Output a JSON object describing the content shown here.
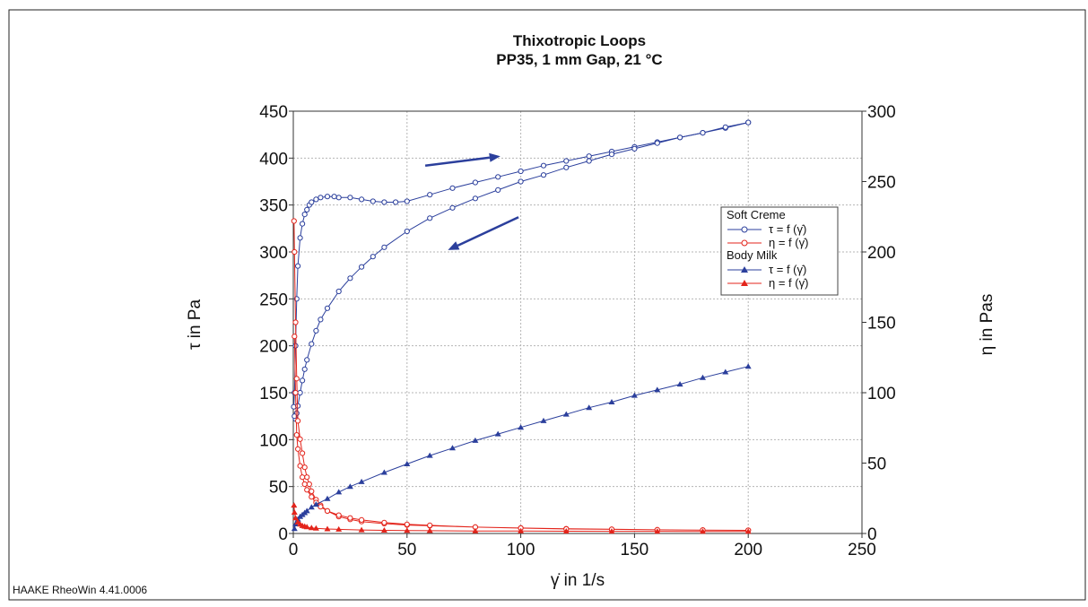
{
  "software_label": "HAAKE RheoWin 4.41.0006",
  "colors": {
    "blue": "#2b3f9c",
    "red": "#e3241b",
    "grid": "#b5b5b5",
    "frame": "#222222"
  },
  "chart_data": {
    "type": "scatter",
    "title": "Thixotropic Loops",
    "subtitle": "PP35, 1 mm Gap, 21 °C",
    "xlabel": "γ̇ in 1/s",
    "ylabel_left": "τ in Pa",
    "ylabel_right": "η in Pas",
    "xlim": [
      0,
      250
    ],
    "ylim_left": [
      0,
      450
    ],
    "ylim_right": [
      0,
      300
    ],
    "xticks": [
      "0",
      "50",
      "100",
      "150",
      "200",
      "250"
    ],
    "yticks_left": [
      "0",
      "50",
      "100",
      "150",
      "200",
      "250",
      "300",
      "350",
      "400",
      "450"
    ],
    "yticks_right": [
      "0",
      "50",
      "100",
      "150",
      "200",
      "250",
      "300"
    ],
    "grid": true,
    "legend_position": "right",
    "legend": [
      {
        "group": "Soft Creme",
        "entries": [
          "τ = f (γ̇)",
          "η = f (γ̇)"
        ]
      },
      {
        "group": "Body Milk",
        "entries": [
          "τ = f (γ̇)",
          "η = f (γ̇)"
        ]
      }
    ],
    "series": [
      {
        "key": "soft_tau_up",
        "axis": "left",
        "color": "#2b3f9c",
        "marker": "open-circle",
        "x": [
          0.2,
          0.5,
          1,
          1.5,
          2,
          3,
          4,
          5,
          6,
          7,
          8,
          10,
          12,
          15,
          18,
          20,
          25,
          30,
          35,
          40,
          45,
          50,
          60,
          70,
          80,
          90,
          100,
          110,
          120,
          130,
          140,
          150,
          160,
          170,
          180,
          190,
          200
        ],
        "y": [
          135,
          150,
          200,
          250,
          285,
          315,
          330,
          340,
          345,
          350,
          353,
          356,
          358,
          359,
          359,
          358,
          358,
          356,
          354,
          353,
          353,
          354,
          361,
          368,
          374,
          380,
          386,
          392,
          397,
          402,
          407,
          412,
          417,
          422,
          427,
          432,
          438
        ]
      },
      {
        "key": "soft_tau_down",
        "axis": "left",
        "color": "#2b3f9c",
        "marker": "open-circle",
        "x": [
          200,
          190,
          180,
          170,
          160,
          150,
          140,
          130,
          120,
          110,
          100,
          90,
          80,
          70,
          60,
          50,
          40,
          35,
          30,
          25,
          20,
          15,
          12,
          10,
          8,
          6,
          5,
          4,
          3,
          2,
          1.5,
          1,
          0.5
        ],
        "y": [
          438,
          433,
          427,
          422,
          416,
          410,
          404,
          397,
          390,
          382,
          375,
          366,
          357,
          347,
          336,
          322,
          305,
          295,
          284,
          272,
          258,
          240,
          228,
          216,
          202,
          185,
          175,
          163,
          150,
          136,
          128,
          122,
          125
        ]
      },
      {
        "key": "soft_eta",
        "axis": "right",
        "color": "#e3241b",
        "marker": "open-circle",
        "x": [
          0.3,
          0.5,
          1,
          1.5,
          2,
          3,
          4,
          5,
          6,
          7,
          8,
          10,
          12,
          15,
          20,
          25,
          30,
          40,
          50,
          60,
          80,
          100,
          120,
          140,
          160,
          180,
          200,
          200,
          180,
          160,
          140,
          120,
          100,
          80,
          60,
          50,
          40,
          30,
          25,
          20,
          15,
          12,
          10,
          8,
          6,
          5,
          4,
          3,
          2,
          1.5,
          1,
          0.5
        ],
        "y": [
          222,
          200,
          150,
          110,
          80,
          67,
          57,
          47,
          40,
          35,
          30,
          24,
          20,
          16,
          12,
          10,
          8.5,
          7,
          6,
          5.5,
          4.5,
          3.9,
          3.4,
          3,
          2.6,
          2.4,
          2.2,
          2.2,
          2.4,
          2.6,
          2.9,
          3.2,
          3.8,
          4.5,
          5.8,
          6.5,
          7.8,
          9.6,
          11,
          13,
          16,
          19,
          22,
          26,
          31,
          35,
          40,
          48,
          60,
          70,
          100,
          140
        ]
      },
      {
        "key": "milk_tau",
        "axis": "left",
        "color": "#2b3f9c",
        "marker": "filled-triangle",
        "x": [
          0.5,
          1,
          2,
          3,
          4,
          5,
          6,
          8,
          10,
          15,
          20,
          25,
          30,
          40,
          50,
          60,
          70,
          80,
          90,
          100,
          110,
          120,
          130,
          140,
          150,
          160,
          170,
          180,
          190,
          200
        ],
        "y": [
          5,
          10,
          15,
          18,
          20,
          22,
          24,
          28,
          31,
          37,
          44,
          50,
          55,
          65,
          74,
          83,
          91,
          99,
          106,
          113,
          120,
          127,
          134,
          140,
          147,
          153,
          159,
          166,
          172,
          178
        ]
      },
      {
        "key": "milk_eta",
        "axis": "right",
        "color": "#e3241b",
        "marker": "filled-triangle",
        "x": [
          0.3,
          0.5,
          1,
          2,
          3,
          4,
          5,
          6,
          8,
          10,
          15,
          20,
          30,
          40,
          50,
          60,
          80,
          100,
          120,
          140,
          160,
          180,
          200
        ],
        "y": [
          20,
          15,
          11,
          8,
          6.5,
          5.5,
          5,
          4.6,
          4,
          3.6,
          3.2,
          2.9,
          2.5,
          2.2,
          2.1,
          2,
          1.8,
          1.7,
          1.6,
          1.5,
          1.5,
          1.4,
          1.4
        ]
      }
    ],
    "annotations": [
      {
        "type": "arrow",
        "from": [
          58,
          392
        ],
        "to": [
          91,
          402
        ]
      },
      {
        "type": "arrow",
        "from": [
          99,
          337
        ],
        "to": [
          68,
          302
        ]
      }
    ]
  }
}
